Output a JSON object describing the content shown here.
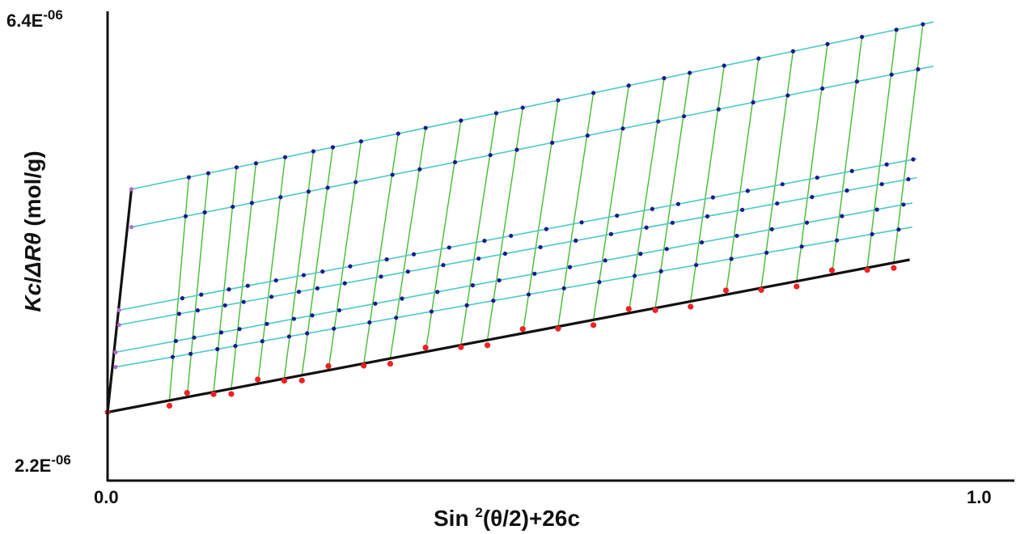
{
  "chart_data": {
    "type": "scatter",
    "subtype": "zimm-plot",
    "xlabel_parts": [
      "Sin ",
      "2",
      "(θ/2)+26c"
    ],
    "ylabel_parts": [
      "Kc",
      "/",
      "ΔRθ",
      " (mol/g)"
    ],
    "x_ticks": [
      {
        "value": 0.0,
        "label": "0.0"
      },
      {
        "value": 1.0,
        "label": "1.0"
      }
    ],
    "y_ticks": [
      {
        "value": 2.2e-06,
        "label": "2.2E-06"
      },
      {
        "value": 6.4e-06,
        "label": "6.4E-06"
      }
    ],
    "y_tick_parts": [
      {
        "mant": "2.2E",
        "exp": "-06"
      },
      {
        "mant": "6.4E",
        "exp": "-06"
      }
    ],
    "xlim": [
      0.0,
      1.0
    ],
    "ylim": [
      2.2e-06,
      6.4e-06
    ],
    "grid": false,
    "legend": "none",
    "colors": {
      "concentration_lines": "#4cc8c8",
      "angle_lines": "#44bb33",
      "extrapolation": "#111111",
      "zero_conc_points": "#ee2222",
      "measured_points": "#1a1a8a",
      "zero_angle_points": "#b06ad0"
    },
    "constant_concentration_lines": [
      {
        "x": [
          0.027,
          0.935
        ],
        "y": [
          4.77e-06,
          6.36e-06
        ]
      },
      {
        "x": [
          0.027,
          0.935
        ],
        "y": [
          4.41e-06,
          5.94e-06
        ]
      },
      {
        "x": [
          0.013,
          0.916
        ],
        "y": [
          3.62e-06,
          5.06e-06
        ]
      },
      {
        "x": [
          0.013,
          0.916
        ],
        "y": [
          3.48e-06,
          4.88e-06
        ]
      },
      {
        "x": [
          0.009,
          0.911
        ],
        "y": [
          3.22e-06,
          4.64e-06
        ]
      },
      {
        "x": [
          0.009,
          0.911
        ],
        "y": [
          3.08e-06,
          4.41e-06
        ]
      }
    ],
    "zero_concentration_fit": {
      "x": [
        0.0,
        0.908
      ],
      "y": [
        2.65e-06,
        4.1e-06
      ]
    },
    "zero_angle_fit": {
      "x": [
        0.0,
        0.027
      ],
      "y": [
        2.65e-06,
        4.77e-06
      ]
    },
    "angles": {
      "x0": [
        0.07,
        0.09,
        0.12,
        0.14,
        0.17,
        0.2,
        0.22,
        0.25,
        0.29,
        0.32,
        0.36,
        0.4,
        0.43,
        0.47,
        0.51,
        0.55,
        0.59,
        0.62,
        0.66,
        0.7,
        0.74,
        0.78,
        0.82,
        0.86,
        0.89
      ],
      "spread": [
        0.022,
        0.024,
        0.026,
        0.028,
        0.031,
        0.033,
        0.035,
        0.037,
        0.039,
        0.04,
        0.04,
        0.04,
        0.04,
        0.04,
        0.04,
        0.04,
        0.04,
        0.039,
        0.038,
        0.037,
        0.036,
        0.035,
        0.034,
        0.033,
        0.033
      ]
    }
  }
}
